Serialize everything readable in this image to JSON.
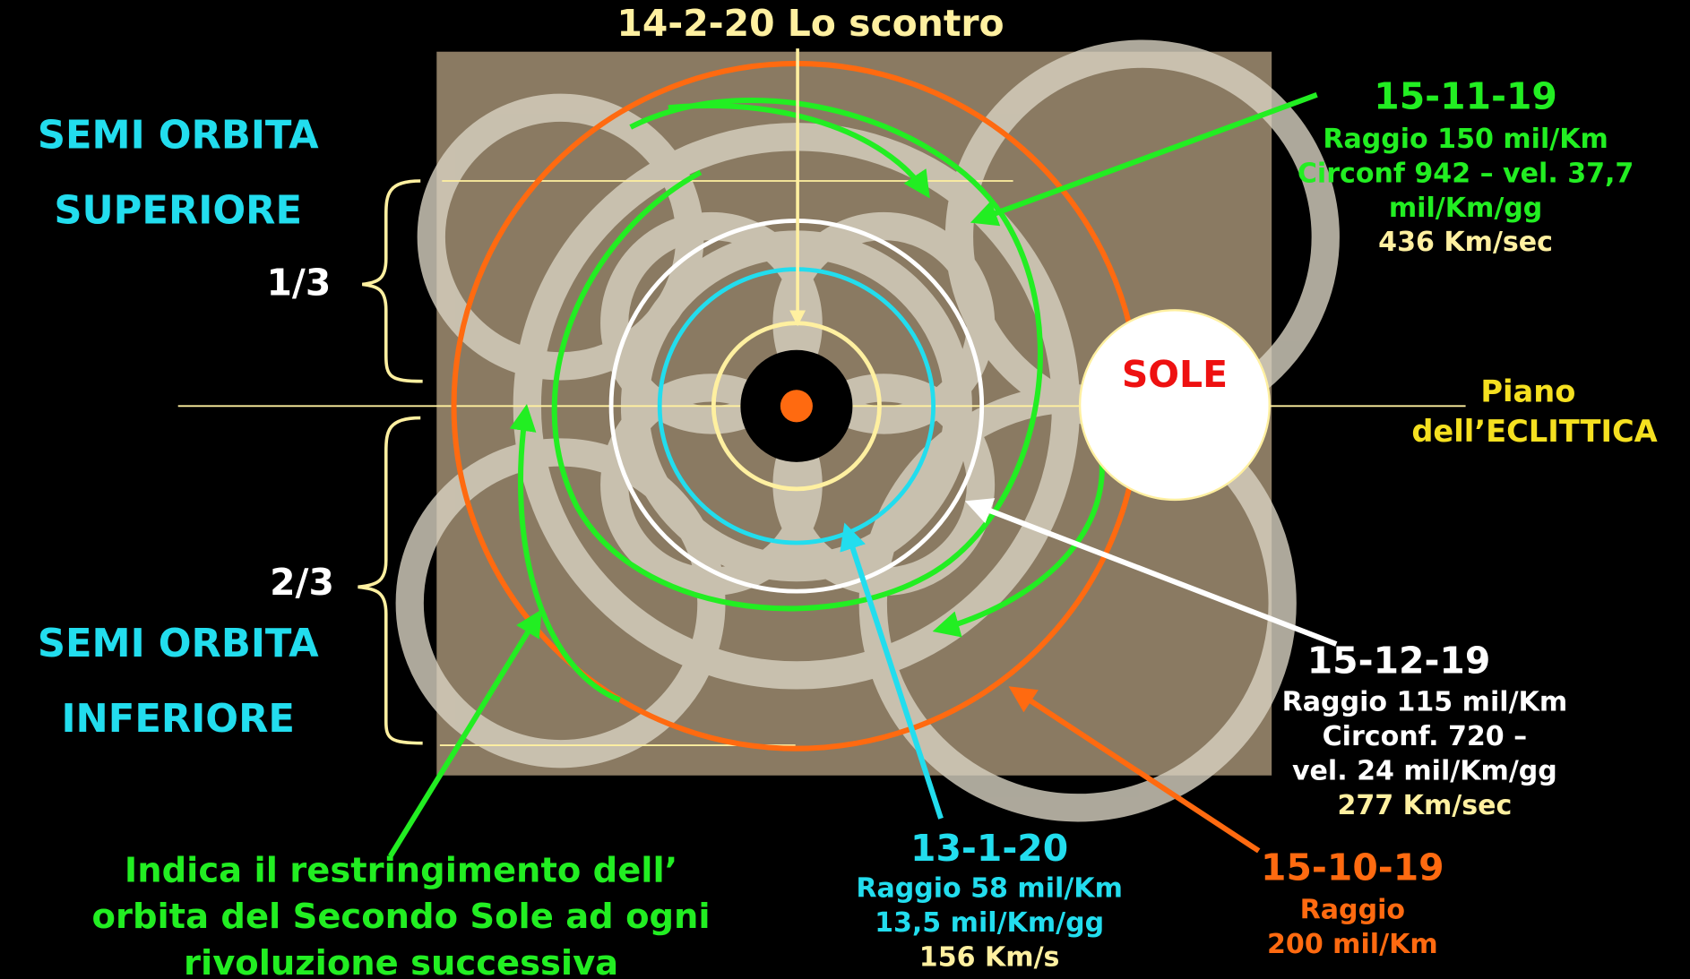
{
  "title": "14-2-20 Lo scontro",
  "left": {
    "upper": [
      "SEMI ORBITA",
      "SUPERIORE"
    ],
    "upper_fraction": "1/3",
    "lower_fraction": "2/3",
    "lower": [
      "SEMI ORBITA",
      "INFERIORE"
    ]
  },
  "sun": "SOLE",
  "ecliptic": [
    "Piano",
    "dell’ECLITTICA"
  ],
  "orbit_green": {
    "date": "15-11-19",
    "lines": [
      "Raggio 150 mil/Km",
      "Circonf 942 – vel. 37,7",
      "mil/Km/gg"
    ],
    "speed": "436 Km/sec"
  },
  "orbit_white": {
    "date": "15-12-19",
    "lines": [
      "Raggio 115 mil/Km",
      "Circonf. 720 –",
      "vel. 24 mil/Km/gg"
    ],
    "speed": "277 Km/sec"
  },
  "orbit_cyan": {
    "date": "13-1-20",
    "lines": [
      "Raggio 58 mil/Km",
      "13,5 mil/Km/gg"
    ],
    "speed": "156 Km/s"
  },
  "orbit_orange": {
    "date": "15-10-19",
    "lines": [
      "Raggio",
      "200 mil/Km"
    ]
  },
  "note": [
    "Indica il restringimento dell’",
    "orbita del Secondo Sole ad ogni",
    "rivoluzione successiva"
  ]
}
